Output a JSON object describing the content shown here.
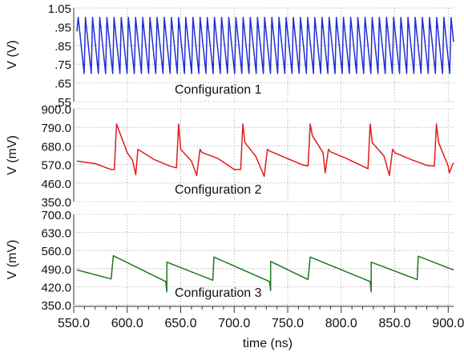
{
  "chart_data": [
    {
      "type": "line",
      "annotation": "Configuration 1",
      "ylabel": "V (V)",
      "ylim": [
        0.55,
        1.05
      ],
      "yticks": [
        "1.05",
        ".95",
        ".85",
        ".75",
        ".65",
        ".55"
      ],
      "xlim": [
        550,
        905
      ],
      "series": [
        {
          "color": "#1f2dd6",
          "pattern": "sawtooth",
          "period_ns": 6.7,
          "low": 0.7,
          "high": 1.0,
          "start_ns": 553,
          "end_ns": 905
        }
      ]
    },
    {
      "type": "line",
      "annotation": "Configuration 2",
      "ylabel": "V (mV)",
      "ylim": [
        350,
        900
      ],
      "yticks": [
        "900.0",
        "790.0",
        "680.0",
        "570.0",
        "460.0",
        "350.0"
      ],
      "xlim": [
        550,
        905
      ],
      "series": [
        {
          "color": "#e31b1b",
          "x": [
            553,
            570,
            585,
            588,
            590,
            600,
            605,
            608,
            610,
            625,
            640,
            646,
            648,
            650,
            660,
            665,
            668,
            670,
            685,
            700,
            706,
            708,
            710,
            720,
            728,
            731,
            733,
            748,
            763,
            769,
            771,
            773,
            783,
            785,
            788,
            790,
            805,
            820,
            825,
            827,
            829,
            840,
            845,
            848,
            850,
            865,
            880,
            887,
            889,
            891,
            900,
            901,
            904,
            905
          ],
          "y": [
            590,
            575,
            540,
            540,
            810,
            640,
            595,
            510,
            660,
            600,
            560,
            550,
            810,
            660,
            590,
            505,
            660,
            640,
            605,
            540,
            540,
            810,
            700,
            620,
            500,
            660,
            650,
            610,
            570,
            560,
            810,
            740,
            640,
            520,
            660,
            645,
            605,
            560,
            545,
            810,
            700,
            620,
            505,
            660,
            640,
            600,
            565,
            560,
            810,
            700,
            560,
            520,
            570,
            580
          ]
        }
      ]
    },
    {
      "type": "line",
      "annotation": "Configuration 3",
      "ylabel": "V (mV)",
      "ylim": [
        350,
        700
      ],
      "yticks": [
        "700.0",
        "630.0",
        "560.0",
        "490.0",
        "420.0",
        "350.0"
      ],
      "xlim": [
        550,
        905
      ],
      "series": [
        {
          "color": "#1f7a1f",
          "x": [
            553,
            585,
            587,
            636,
            637,
            637,
            637,
            680,
            681,
            733,
            734,
            734,
            734,
            769,
            771,
            827,
            828,
            828,
            828,
            871,
            872,
            905
          ],
          "y": [
            485,
            450,
            540,
            440,
            400,
            440,
            515,
            445,
            535,
            440,
            405,
            440,
            518,
            448,
            535,
            440,
            400,
            440,
            515,
            448,
            538,
            485
          ]
        }
      ]
    }
  ],
  "xaxis": {
    "label": "time (ns)",
    "ticks": [
      "550.0",
      "600.0",
      "650.0",
      "700.0",
      "750.0",
      "800.0",
      "850.0",
      "900.0"
    ],
    "tick_values": [
      550,
      600,
      650,
      700,
      750,
      800,
      850,
      900
    ]
  }
}
